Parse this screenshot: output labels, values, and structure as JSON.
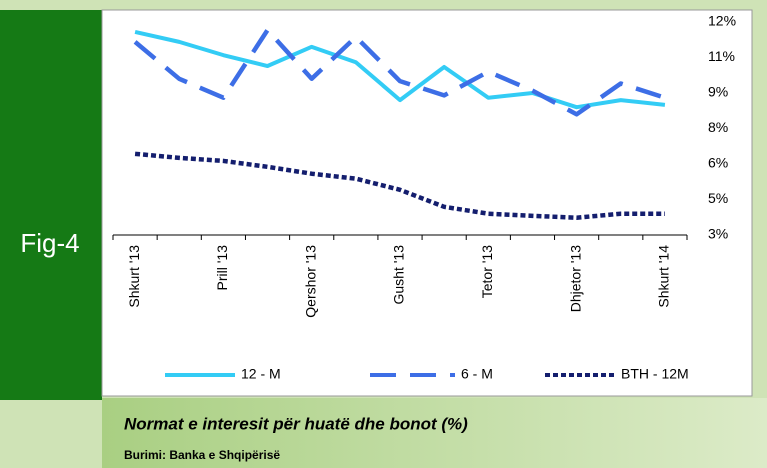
{
  "figure_label": "Fig-4",
  "caption": "Normat e interesit për huatë dhe bonot (%)",
  "source": "Burimi: Banka e Shqipërisë",
  "chart_data": {
    "type": "line",
    "categories": [
      "Shkurt '13",
      null,
      "Prill '13",
      null,
      "Qershor '13",
      null,
      "Gusht '13",
      null,
      "Tetor '13",
      null,
      "Dhjetor '13",
      null,
      "Shkurt '14"
    ],
    "series": [
      {
        "name": "12 - M",
        "color": "#33ccf5",
        "style": "solid",
        "values": [
          11.58,
          11.16,
          10.6,
          10.14,
          10.95,
          10.3,
          8.7,
          10.1,
          8.8,
          9.0,
          8.4,
          8.7,
          8.5
        ]
      },
      {
        "name": "6 - M",
        "color": "#3d6ee6",
        "style": "dashed",
        "values": [
          11.16,
          9.6,
          8.8,
          11.66,
          9.6,
          11.37,
          9.5,
          8.9,
          9.9,
          9.1,
          8.1,
          9.4,
          8.8
        ]
      },
      {
        "name": "BTH - 12M",
        "color": "#141e6e",
        "style": "dotted",
        "values": [
          6.43,
          6.26,
          6.13,
          5.88,
          5.59,
          5.38,
          4.91,
          4.19,
          3.9,
          3.81,
          3.73,
          3.9,
          3.9
        ]
      }
    ],
    "ylim": [
      3,
      12
    ],
    "yticks": [
      {
        "value": 3,
        "label": "3%"
      },
      {
        "value": 4.5,
        "label": "5%"
      },
      {
        "value": 6,
        "label": "6%"
      },
      {
        "value": 7.5,
        "label": "8%"
      },
      {
        "value": 9,
        "label": "9%"
      },
      {
        "value": 10.5,
        "label": "11%"
      },
      {
        "value": 12,
        "label": "12%"
      }
    ],
    "y_axis_side": "right",
    "legend": "bottom"
  }
}
